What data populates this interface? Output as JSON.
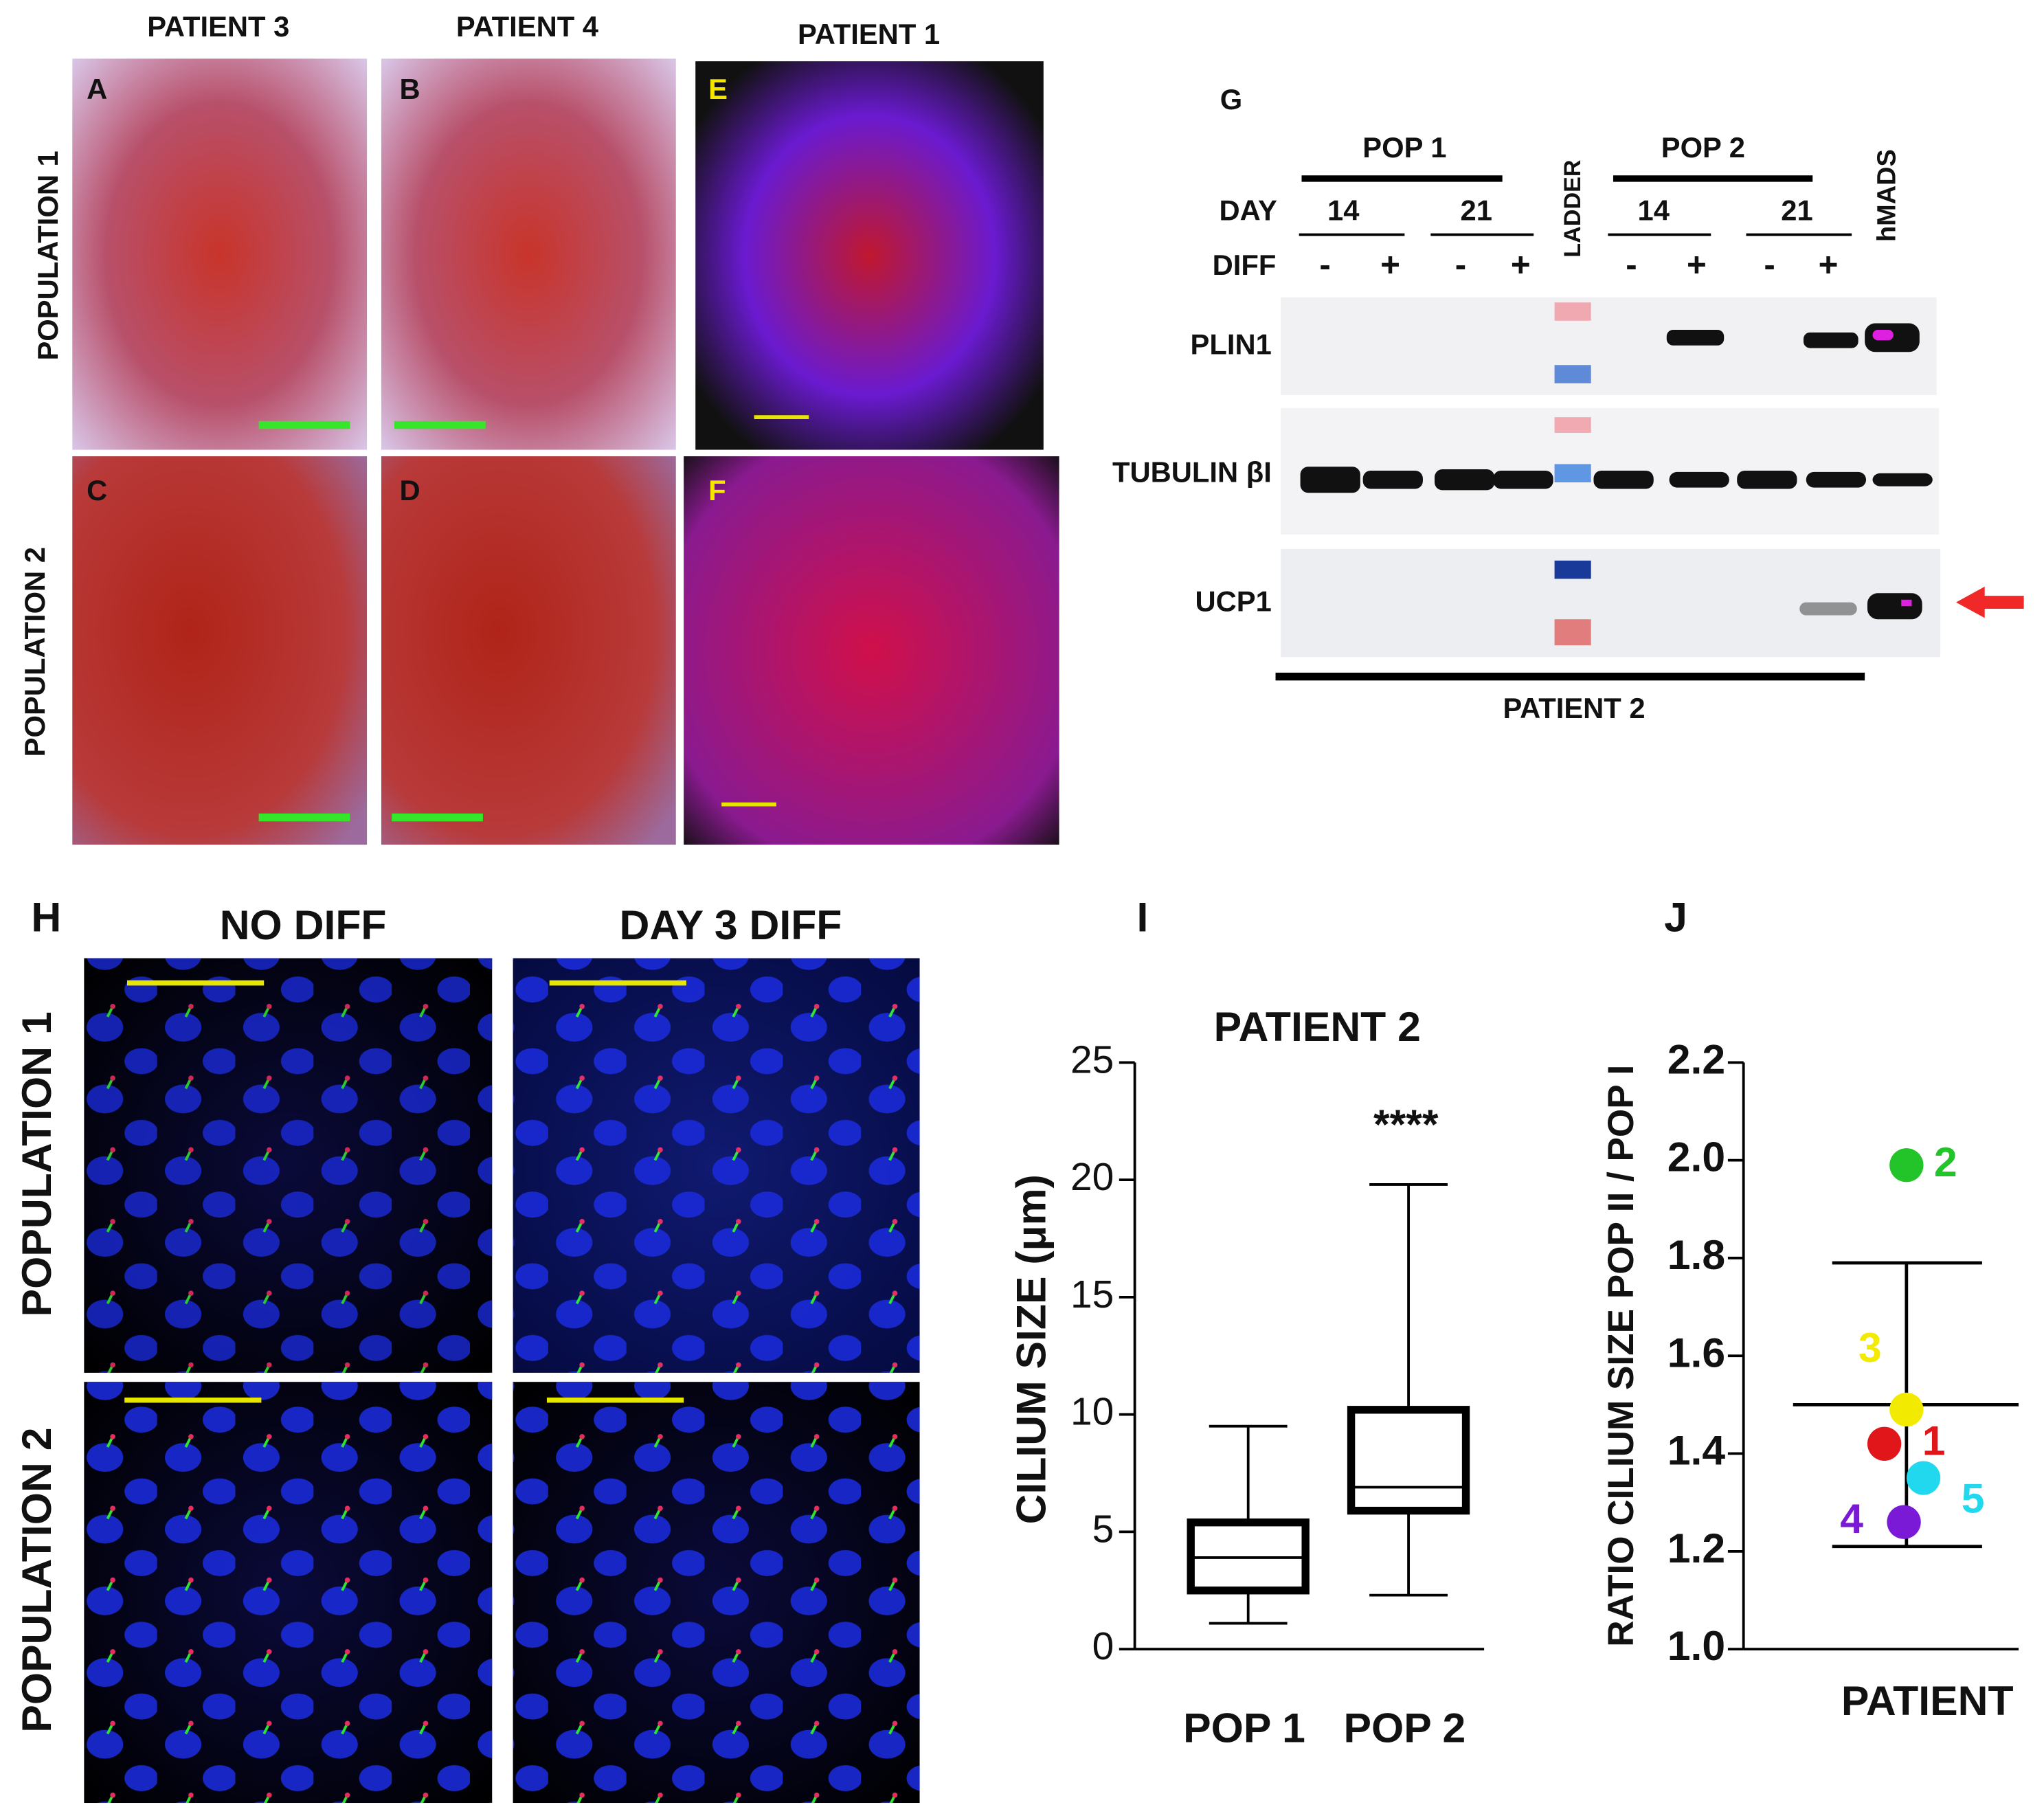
{
  "panels": {
    "top_columns": [
      "PATIENT 3",
      "PATIENT 4",
      "PATIENT 1"
    ],
    "top_rows": [
      "POPULATION 1",
      "POPULATION 2"
    ],
    "letters": [
      "A",
      "B",
      "E",
      "C",
      "D",
      "F"
    ],
    "blot": {
      "letter": "G",
      "groups": [
        "POP 1",
        "POP 2"
      ],
      "day_label": "DAY",
      "days": [
        "14",
        "21",
        "14",
        "21"
      ],
      "diff_label": "DIFF",
      "diff": [
        "-",
        "+",
        "-",
        "+",
        "-",
        "+",
        "-",
        "+"
      ],
      "ladder": "LADDER",
      "control": "hMADS",
      "rows": [
        "PLIN1",
        "TUBULIN βI",
        "UCP1"
      ],
      "patient": "PATIENT 2"
    },
    "cilia": {
      "letter": "H",
      "columns": [
        "NO DIFF",
        "DAY 3 DIFF"
      ],
      "rows": [
        "POPULATION 1",
        "POPULATION 2"
      ]
    }
  },
  "chart_data": [
    {
      "type": "box",
      "letter": "I",
      "title": "PATIENT 2",
      "y_label": "CILIUM SIZE (μm)",
      "categories": [
        "POP 1",
        "POP 2"
      ],
      "min": [
        1.1,
        2.3
      ],
      "q1": [
        2.5,
        5.9
      ],
      "median": [
        3.9,
        6.9
      ],
      "q3": [
        5.4,
        10.2
      ],
      "max": [
        9.5,
        19.8
      ],
      "annotation": "****",
      "ylim": [
        0,
        25
      ],
      "yticks": [
        0,
        5,
        10,
        15,
        20,
        25
      ]
    },
    {
      "type": "scatter",
      "letter": "J",
      "y_label": "RATIO CILIUM SIZE POP II / POP I",
      "x_label": "PATIENT",
      "points": [
        "1",
        "2",
        "3",
        "4",
        "5"
      ],
      "values": [
        1.42,
        1.99,
        1.49,
        1.26,
        1.35
      ],
      "colors": [
        "#e0161b",
        "#22c42a",
        "#f2ea00",
        "#7a19d6",
        "#22d8ee"
      ],
      "mean": 1.5,
      "sd": 0.29,
      "ylim": [
        1.0,
        2.2
      ],
      "yticks": [
        {
          "value": 1.0,
          "label": "1.0"
        },
        1.2,
        1.4,
        1.6,
        1.8,
        {
          "value": 2.0,
          "label": "2.0"
        },
        2.2
      ]
    }
  ]
}
